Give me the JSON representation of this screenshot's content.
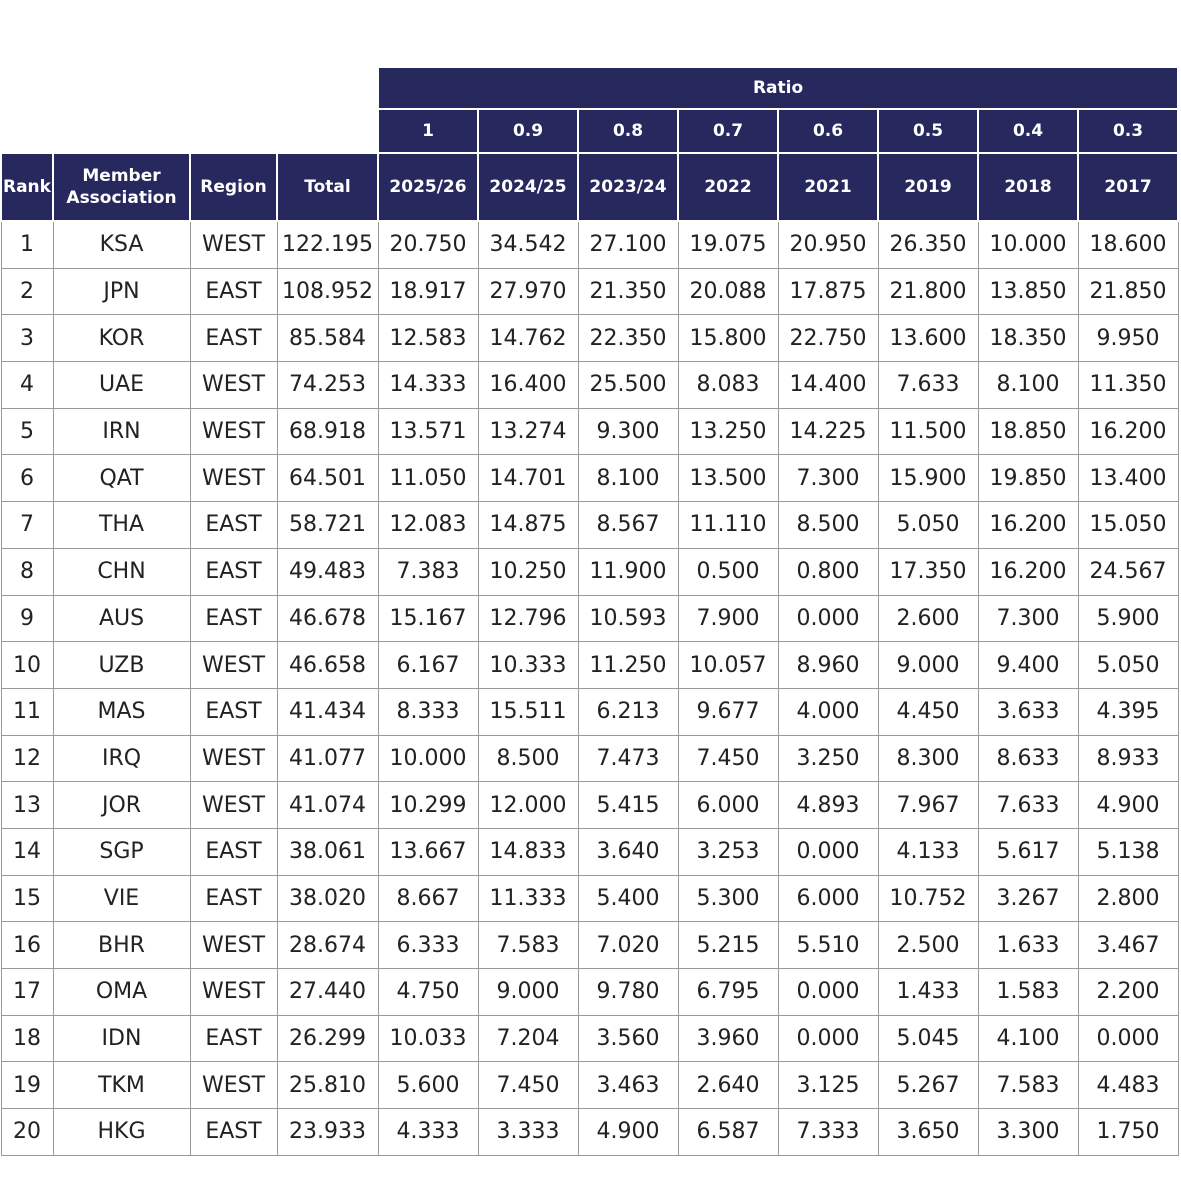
{
  "table": {
    "group_header": "Ratio",
    "ratios": [
      "1",
      "0.9",
      "0.8",
      "0.7",
      "0.6",
      "0.5",
      "0.4",
      "0.3"
    ],
    "columns": [
      "Rank",
      "Member Association",
      "Region",
      "Total",
      "2025/26",
      "2024/25",
      "2023/24",
      "2022",
      "2021",
      "2019",
      "2018",
      "2017"
    ],
    "rows": [
      [
        "1",
        "KSA",
        "WEST",
        "122.195",
        "20.750",
        "34.542",
        "27.100",
        "19.075",
        "20.950",
        "26.350",
        "10.000",
        "18.600"
      ],
      [
        "2",
        "JPN",
        "EAST",
        "108.952",
        "18.917",
        "27.970",
        "21.350",
        "20.088",
        "17.875",
        "21.800",
        "13.850",
        "21.850"
      ],
      [
        "3",
        "KOR",
        "EAST",
        "85.584",
        "12.583",
        "14.762",
        "22.350",
        "15.800",
        "22.750",
        "13.600",
        "18.350",
        "9.950"
      ],
      [
        "4",
        "UAE",
        "WEST",
        "74.253",
        "14.333",
        "16.400",
        "25.500",
        "8.083",
        "14.400",
        "7.633",
        "8.100",
        "11.350"
      ],
      [
        "5",
        "IRN",
        "WEST",
        "68.918",
        "13.571",
        "13.274",
        "9.300",
        "13.250",
        "14.225",
        "11.500",
        "18.850",
        "16.200"
      ],
      [
        "6",
        "QAT",
        "WEST",
        "64.501",
        "11.050",
        "14.701",
        "8.100",
        "13.500",
        "7.300",
        "15.900",
        "19.850",
        "13.400"
      ],
      [
        "7",
        "THA",
        "EAST",
        "58.721",
        "12.083",
        "14.875",
        "8.567",
        "11.110",
        "8.500",
        "5.050",
        "16.200",
        "15.050"
      ],
      [
        "8",
        "CHN",
        "EAST",
        "49.483",
        "7.383",
        "10.250",
        "11.900",
        "0.500",
        "0.800",
        "17.350",
        "16.200",
        "24.567"
      ],
      [
        "9",
        "AUS",
        "EAST",
        "46.678",
        "15.167",
        "12.796",
        "10.593",
        "7.900",
        "0.000",
        "2.600",
        "7.300",
        "5.900"
      ],
      [
        "10",
        "UZB",
        "WEST",
        "46.658",
        "6.167",
        "10.333",
        "11.250",
        "10.057",
        "8.960",
        "9.000",
        "9.400",
        "5.050"
      ],
      [
        "11",
        "MAS",
        "EAST",
        "41.434",
        "8.333",
        "15.511",
        "6.213",
        "9.677",
        "4.000",
        "4.450",
        "3.633",
        "4.395"
      ],
      [
        "12",
        "IRQ",
        "WEST",
        "41.077",
        "10.000",
        "8.500",
        "7.473",
        "7.450",
        "3.250",
        "8.300",
        "8.633",
        "8.933"
      ],
      [
        "13",
        "JOR",
        "WEST",
        "41.074",
        "10.299",
        "12.000",
        "5.415",
        "6.000",
        "4.893",
        "7.967",
        "7.633",
        "4.900"
      ],
      [
        "14",
        "SGP",
        "EAST",
        "38.061",
        "13.667",
        "14.833",
        "3.640",
        "3.253",
        "0.000",
        "4.133",
        "5.617",
        "5.138"
      ],
      [
        "15",
        "VIE",
        "EAST",
        "38.020",
        "8.667",
        "11.333",
        "5.400",
        "5.300",
        "6.000",
        "10.752",
        "3.267",
        "2.800"
      ],
      [
        "16",
        "BHR",
        "WEST",
        "28.674",
        "6.333",
        "7.583",
        "7.020",
        "5.215",
        "5.510",
        "2.500",
        "1.633",
        "3.467"
      ],
      [
        "17",
        "OMA",
        "WEST",
        "27.440",
        "4.750",
        "9.000",
        "9.780",
        "6.795",
        "0.000",
        "1.433",
        "1.583",
        "2.200"
      ],
      [
        "18",
        "IDN",
        "EAST",
        "26.299",
        "10.033",
        "7.204",
        "3.560",
        "3.960",
        "0.000",
        "5.045",
        "4.100",
        "0.000"
      ],
      [
        "19",
        "TKM",
        "WEST",
        "25.810",
        "5.600",
        "7.450",
        "3.463",
        "2.640",
        "3.125",
        "5.267",
        "7.583",
        "4.483"
      ],
      [
        "20",
        "HKG",
        "EAST",
        "23.933",
        "4.333",
        "3.333",
        "4.900",
        "6.587",
        "7.333",
        "3.650",
        "3.300",
        "1.750"
      ]
    ]
  }
}
